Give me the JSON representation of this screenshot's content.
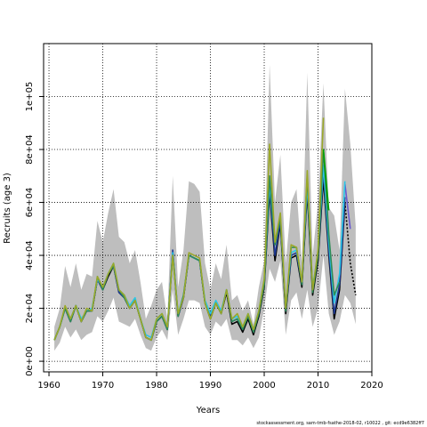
{
  "chart_data": {
    "type": "line",
    "title": "",
    "xlabel": "Years",
    "ylabel": "Recruits (age 3)",
    "xlim": [
      1959,
      2020
    ],
    "ylim": [
      -4000,
      120000
    ],
    "grid": "dotted",
    "xticks": [
      1960,
      1970,
      1980,
      1990,
      2000,
      2010,
      2020
    ],
    "xtick_labels": [
      "1960",
      "1970",
      "1980",
      "1990",
      "2000",
      "2010",
      "2020"
    ],
    "yticks": [
      0,
      20000,
      40000,
      60000,
      80000,
      100000
    ],
    "ytick_labels": [
      "0e+00",
      "2e+04",
      "4e+04",
      "6e+04",
      "8e+04",
      "1e+05"
    ],
    "band": {
      "color": "#bebebe",
      "x": [
        1961,
        1962,
        1963,
        1964,
        1965,
        1966,
        1967,
        1968,
        1969,
        1970,
        1971,
        1972,
        1973,
        1974,
        1975,
        1976,
        1977,
        1978,
        1979,
        1980,
        1981,
        1982,
        1983,
        1984,
        1985,
        1986,
        1987,
        1988,
        1989,
        1990,
        1991,
        1992,
        1993,
        1994,
        1995,
        1996,
        1997,
        1998,
        1999,
        2000,
        2001,
        2002,
        2003,
        2004,
        2005,
        2006,
        2007,
        2008,
        2009,
        2010,
        2011,
        2012,
        2013,
        2014,
        2015,
        2016,
        2017
      ],
      "upper": [
        13000,
        20000,
        36000,
        28000,
        37000,
        27000,
        33000,
        32000,
        53000,
        45000,
        56000,
        65000,
        47000,
        45000,
        37000,
        42000,
        30000,
        16000,
        21000,
        27000,
        30000,
        16000,
        70000,
        28000,
        42000,
        68000,
        67000,
        64000,
        37000,
        27000,
        37000,
        31000,
        44000,
        23000,
        25000,
        19000,
        23000,
        14000,
        28000,
        38000,
        112000,
        60000,
        78000,
        37000,
        60000,
        65000,
        37000,
        109000,
        40000,
        60000,
        105000,
        58000,
        55000,
        42000,
        103000,
        82000,
        51000
      ],
      "lower": [
        4000,
        7000,
        13000,
        9000,
        12000,
        8000,
        10000,
        11000,
        17000,
        15000,
        19000,
        24000,
        15000,
        14000,
        13000,
        16000,
        10000,
        5000,
        4000,
        9000,
        12000,
        8000,
        27000,
        10000,
        16000,
        23000,
        23000,
        22000,
        13000,
        10000,
        15000,
        13000,
        16000,
        8000,
        8000,
        6000,
        9000,
        5000,
        9000,
        20000,
        35000,
        30000,
        38000,
        10000,
        23000,
        26000,
        16000,
        27000,
        13000,
        20000,
        40000,
        18000,
        10000,
        15000,
        25000,
        22000,
        14000
      ]
    },
    "series": [
      {
        "color": "#000000",
        "dash": "",
        "x": [
          1961,
          1962,
          1963,
          1964,
          1965,
          1966,
          1967,
          1968,
          1969,
          1970,
          1971,
          1972,
          1973,
          1974,
          1975,
          1976,
          1977,
          1978,
          1979,
          1980,
          1981,
          1982,
          1983,
          1984,
          1985,
          1986,
          1987,
          1988,
          1989,
          1990,
          1991,
          1992,
          1993,
          1994,
          1995,
          1996,
          1997,
          1998,
          1999,
          2000,
          2001,
          2002,
          2003,
          2004,
          2005,
          2006,
          2007,
          2008,
          2009,
          2010,
          2011,
          2012,
          2013,
          2014,
          2015
        ],
        "values": [
          8000,
          13000,
          20000,
          15000,
          21000,
          15000,
          19000,
          19000,
          31000,
          27000,
          32000,
          36000,
          26000,
          24000,
          20000,
          23000,
          16000,
          9000,
          8000,
          15000,
          17000,
          12000,
          41000,
          17000,
          24000,
          40000,
          39000,
          38000,
          22000,
          16000,
          22000,
          18000,
          26000,
          14000,
          15000,
          11000,
          16000,
          10000,
          17000,
          28000,
          64000,
          38000,
          52000,
          18000,
          39000,
          40000,
          28000,
          64000,
          25000,
          38000,
          69000,
          40000,
          16000,
          27000,
          60000
        ]
      },
      {
        "color": "#000000",
        "dash": "2,2",
        "x": [
          2015,
          2016,
          2017
        ],
        "values": [
          60000,
          37000,
          25000
        ]
      },
      {
        "color": "#1f3a93",
        "dash": "",
        "x": [
          1961,
          1962,
          1963,
          1964,
          1965,
          1966,
          1967,
          1968,
          1969,
          1970,
          1971,
          1972,
          1973,
          1974,
          1975,
          1976,
          1977,
          1978,
          1979,
          1980,
          1981,
          1982,
          1983,
          1984,
          1985,
          1986,
          1987,
          1988,
          1989,
          1990,
          1991,
          1992,
          1993,
          1994,
          1995,
          1996,
          1997,
          1998,
          1999,
          2000,
          2001,
          2002,
          2003,
          2004,
          2005,
          2006,
          2007,
          2008,
          2009,
          2010,
          2011,
          2012,
          2013,
          2014,
          2015
        ],
        "values": [
          8000,
          13000,
          20000,
          15000,
          21000,
          15000,
          19000,
          19000,
          31000,
          27000,
          33000,
          36000,
          26000,
          24000,
          20000,
          23000,
          16000,
          9000,
          8000,
          15000,
          17000,
          12000,
          42000,
          17000,
          24000,
          40000,
          39000,
          38000,
          22000,
          17000,
          22000,
          18000,
          27000,
          15000,
          16000,
          12000,
          17000,
          11000,
          18000,
          29000,
          66000,
          40000,
          53000,
          19000,
          40000,
          41000,
          29000,
          66000,
          27000,
          40000,
          72000,
          42000,
          18000,
          29000,
          62000
        ]
      },
      {
        "color": "#6a5acd",
        "dash": "",
        "x": [
          2015,
          2016
        ],
        "values": [
          67000,
          50000
        ]
      },
      {
        "color": "#29c6e6",
        "dash": "",
        "x": [
          1961,
          1962,
          1963,
          1964,
          1965,
          1966,
          1967,
          1968,
          1969,
          1970,
          1971,
          1972,
          1973,
          1974,
          1975,
          1976,
          1977,
          1978,
          1979,
          1980,
          1981,
          1982,
          1983,
          1984,
          1985,
          1986,
          1987,
          1988,
          1989,
          1990,
          1991,
          1992,
          1993,
          1994,
          1995,
          1996,
          1997,
          1998,
          1999,
          2000,
          2001,
          2002,
          2003,
          2004,
          2005,
          2006,
          2007,
          2008,
          2009,
          2010,
          2011,
          2012,
          2013,
          2014,
          2015
        ],
        "values": [
          8000,
          13000,
          20000,
          16000,
          21000,
          16000,
          19000,
          20000,
          31000,
          28000,
          33000,
          37000,
          27000,
          25000,
          21000,
          24000,
          16000,
          10000,
          9000,
          16000,
          18000,
          13000,
          41000,
          18000,
          25000,
          40000,
          39000,
          38000,
          23000,
          18000,
          23000,
          19000,
          27000,
          16000,
          17000,
          13000,
          18000,
          12000,
          19000,
          31000,
          67000,
          45000,
          55000,
          20000,
          41000,
          42000,
          30000,
          67000,
          28000,
          41000,
          74000,
          45000,
          22000,
          33000,
          68000
        ]
      },
      {
        "color": "#2e8b57",
        "dash": "",
        "x": [
          1961,
          1962,
          1963,
          1964,
          1965,
          1966,
          1967,
          1968,
          1969,
          1970,
          1971,
          1972,
          1973,
          1974,
          1975,
          1976,
          1977,
          1978,
          1979,
          1980,
          1981,
          1982,
          1983,
          1984,
          1985,
          1986,
          1987,
          1988,
          1989,
          1990,
          1991,
          1992,
          1993,
          1994,
          1995,
          1996,
          1997,
          1998,
          1999,
          2000,
          2001,
          2002,
          2003,
          2004,
          2005,
          2006,
          2007,
          2008,
          2009,
          2010,
          2011,
          2012,
          2013,
          2014
        ],
        "values": [
          8000,
          13000,
          20000,
          15000,
          21000,
          15000,
          19000,
          19000,
          32000,
          27000,
          33000,
          36000,
          27000,
          24000,
          20000,
          23000,
          16000,
          9000,
          8000,
          15000,
          17000,
          12000,
          40000,
          17000,
          25000,
          40000,
          39000,
          38000,
          22000,
          16000,
          22000,
          18000,
          27000,
          15000,
          16000,
          12000,
          17000,
          11000,
          18000,
          29000,
          70000,
          44000,
          54000,
          19000,
          43000,
          43000,
          29000,
          70000,
          26000,
          40000,
          80000,
          48000,
          25000,
          30000
        ]
      },
      {
        "color": "#00a000",
        "dash": "",
        "x": [
          2011,
          2012
        ],
        "values": [
          80000,
          57000
        ]
      },
      {
        "color": "#9aa82a",
        "dash": "",
        "x": [
          1961,
          1962,
          1963,
          1964,
          1965,
          1966,
          1967,
          1968,
          1969,
          1970,
          1971,
          1972,
          1973,
          1974,
          1975,
          1976,
          1977,
          1978,
          1979,
          1980,
          1981,
          1982,
          1983,
          1984,
          1985,
          1986,
          1987,
          1988,
          1989,
          1990,
          1991,
          1992,
          1993,
          1994,
          1995,
          1996,
          1997,
          1998,
          1999,
          2000,
          2001,
          2002,
          2003,
          2004,
          2005,
          2006,
          2007,
          2008,
          2009,
          2010,
          2011
        ],
        "values": [
          8000,
          13000,
          21000,
          16000,
          21000,
          15000,
          20000,
          19000,
          32000,
          28000,
          33000,
          37000,
          27000,
          25000,
          20000,
          23000,
          16000,
          9000,
          8000,
          16000,
          18000,
          13000,
          40000,
          18000,
          24000,
          41000,
          40000,
          39000,
          22000,
          16000,
          22000,
          18000,
          27000,
          16000,
          18000,
          13000,
          18000,
          12000,
          19000,
          31000,
          82000,
          45000,
          56000,
          20000,
          44000,
          43000,
          30000,
          72000,
          27000,
          42000,
          92000
        ]
      }
    ]
  },
  "footer": "stockassessment.org, sam-tmb-fsathe-2018-02, r10022 , git: ecd9e6382ff7"
}
